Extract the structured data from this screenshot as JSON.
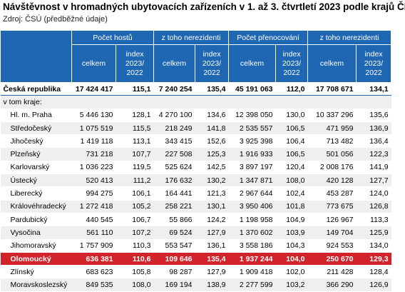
{
  "header": {
    "title": "Návštěvnost v hromadných ubytovacích zařízeních v 1. až 3. čtvrtletí 2023 podle krajů ČR",
    "source": "Zdroj: ČSÚ (předběžné údaje)"
  },
  "table": {
    "groups": [
      "Počet hostů",
      "z toho nerezidenti",
      "Počet přenocování",
      "z toho nerezidenti"
    ],
    "subheaders": [
      [
        "celkem"
      ],
      [
        "index",
        "2023/",
        "2022"
      ],
      [
        "celkem"
      ],
      [
        "index",
        "2023/",
        "2022"
      ],
      [
        "celkem"
      ],
      [
        "index",
        "2023/",
        "2022"
      ],
      [
        "celkem"
      ],
      [
        "index",
        "2023/",
        "2022"
      ]
    ],
    "total": [
      "Česká republika",
      "17 424 417",
      "115,1",
      "7 240 254",
      "135,4",
      "45 191 063",
      "112,0",
      "17 708 671",
      "134,1"
    ],
    "section": "v tom kraje:",
    "rows": [
      [
        "Hl. m. Praha",
        "5 446 130",
        "128,1",
        "4 270 100",
        "134,6",
        "12 398 050",
        "130,0",
        "10 337 296",
        "135,6"
      ],
      [
        "Středočeský",
        "1 075 519",
        "115,5",
        "218 249",
        "141,8",
        "2 535 557",
        "106,5",
        "471 959",
        "136,9"
      ],
      [
        "Jihočeský",
        "1 419 118",
        "113,1",
        "343 415",
        "152,6",
        "3 925 398",
        "106,4",
        "713 482",
        "136,4"
      ],
      [
        "Plzeňský",
        "731 218",
        "107,7",
        "227 508",
        "125,3",
        "1 916 933",
        "106,5",
        "501 056",
        "122,3"
      ],
      [
        "Karlovarský",
        "1 036 223",
        "119,5",
        "525 624",
        "142,5",
        "3 897 197",
        "120,4",
        "2 008 176",
        "141,9"
      ],
      [
        "Ústecký",
        "520 413",
        "111,2",
        "176 632",
        "130,2",
        "1 347 871",
        "108,0",
        "420 128",
        "127,7"
      ],
      [
        "Liberecký",
        "994 275",
        "106,1",
        "164 441",
        "121,3",
        "2 967 644",
        "102,4",
        "453 287",
        "124,0"
      ],
      [
        "Královéhradecký",
        "1 272 418",
        "105,2",
        "258 221",
        "130,1",
        "3 950 406",
        "101,8",
        "773 675",
        "126,8"
      ],
      [
        "Pardubický",
        "440 545",
        "106,7",
        "55 866",
        "124,2",
        "1 198 958",
        "104,9",
        "126 967",
        "113,3"
      ],
      [
        "Vysočina",
        "561 110",
        "107,2",
        "69 524",
        "127,9",
        "1 370 602",
        "103,9",
        "149 704",
        "125,9"
      ],
      [
        "Jihomoravský",
        "1 757 909",
        "110,3",
        "553 547",
        "136,1",
        "3 558 186",
        "104,3",
        "924 553",
        "134,0"
      ],
      [
        "Olomoucký",
        "636 381",
        "110,6",
        "109 646",
        "135,4",
        "1 937 244",
        "104,0",
        "250 670",
        "129,3"
      ],
      [
        "Zlínský",
        "683 623",
        "105,8",
        "98 287",
        "127,9",
        "1 909 418",
        "102,0",
        "211 428",
        "128,4"
      ],
      [
        "Moravskoslezský",
        "849 535",
        "108,0",
        "169 194",
        "138,9",
        "2 277 599",
        "103,2",
        "366 290",
        "126,9"
      ]
    ]
  }
}
